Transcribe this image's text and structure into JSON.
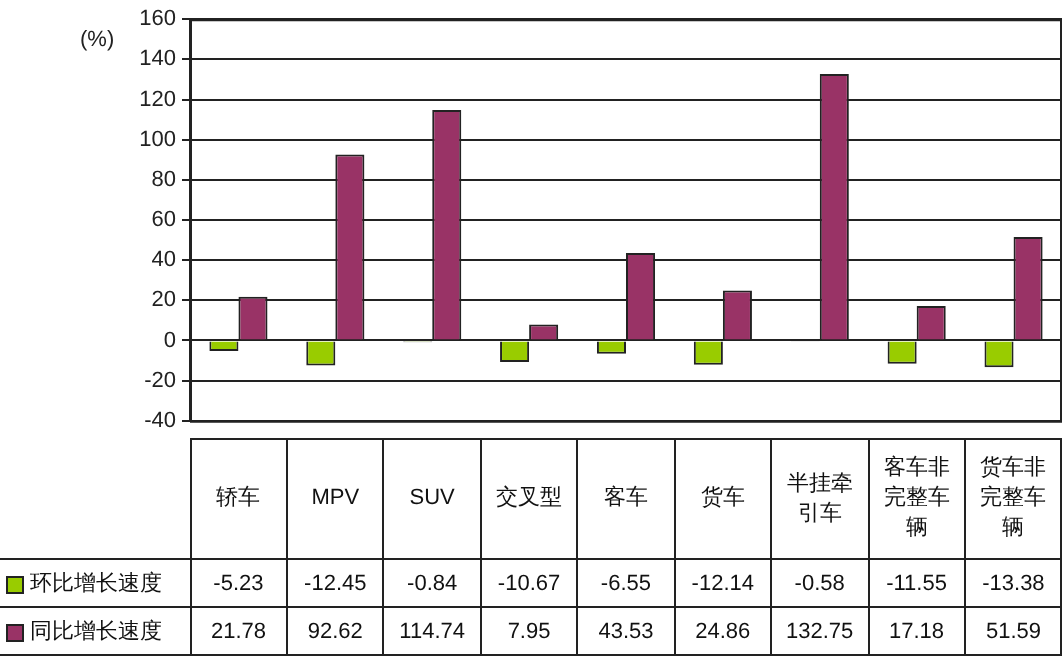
{
  "chart_data": {
    "type": "bar",
    "ylabel": "(%)",
    "categories": [
      "轿车",
      "MPV",
      "SUV",
      "交叉型",
      "客车",
      "货车",
      "半挂牵引车",
      "客车非完整车辆",
      "货车非完整车辆"
    ],
    "series": [
      {
        "name": "环比增长速度",
        "color": "#99cc00",
        "values": [
          -5.23,
          -12.45,
          -0.84,
          -10.67,
          -6.55,
          -12.14,
          -0.58,
          -11.55,
          -13.38
        ]
      },
      {
        "name": "同比增长速度",
        "color": "#993366",
        "values": [
          21.78,
          92.62,
          114.74,
          7.95,
          43.53,
          24.86,
          132.75,
          17.18,
          51.59
        ]
      }
    ],
    "ylim": [
      -40,
      160
    ],
    "yticks": [
      -40,
      -20,
      0,
      20,
      40,
      60,
      80,
      100,
      120,
      140,
      160
    ],
    "grid": "y",
    "legend": "bottom",
    "data_labels": true
  }
}
